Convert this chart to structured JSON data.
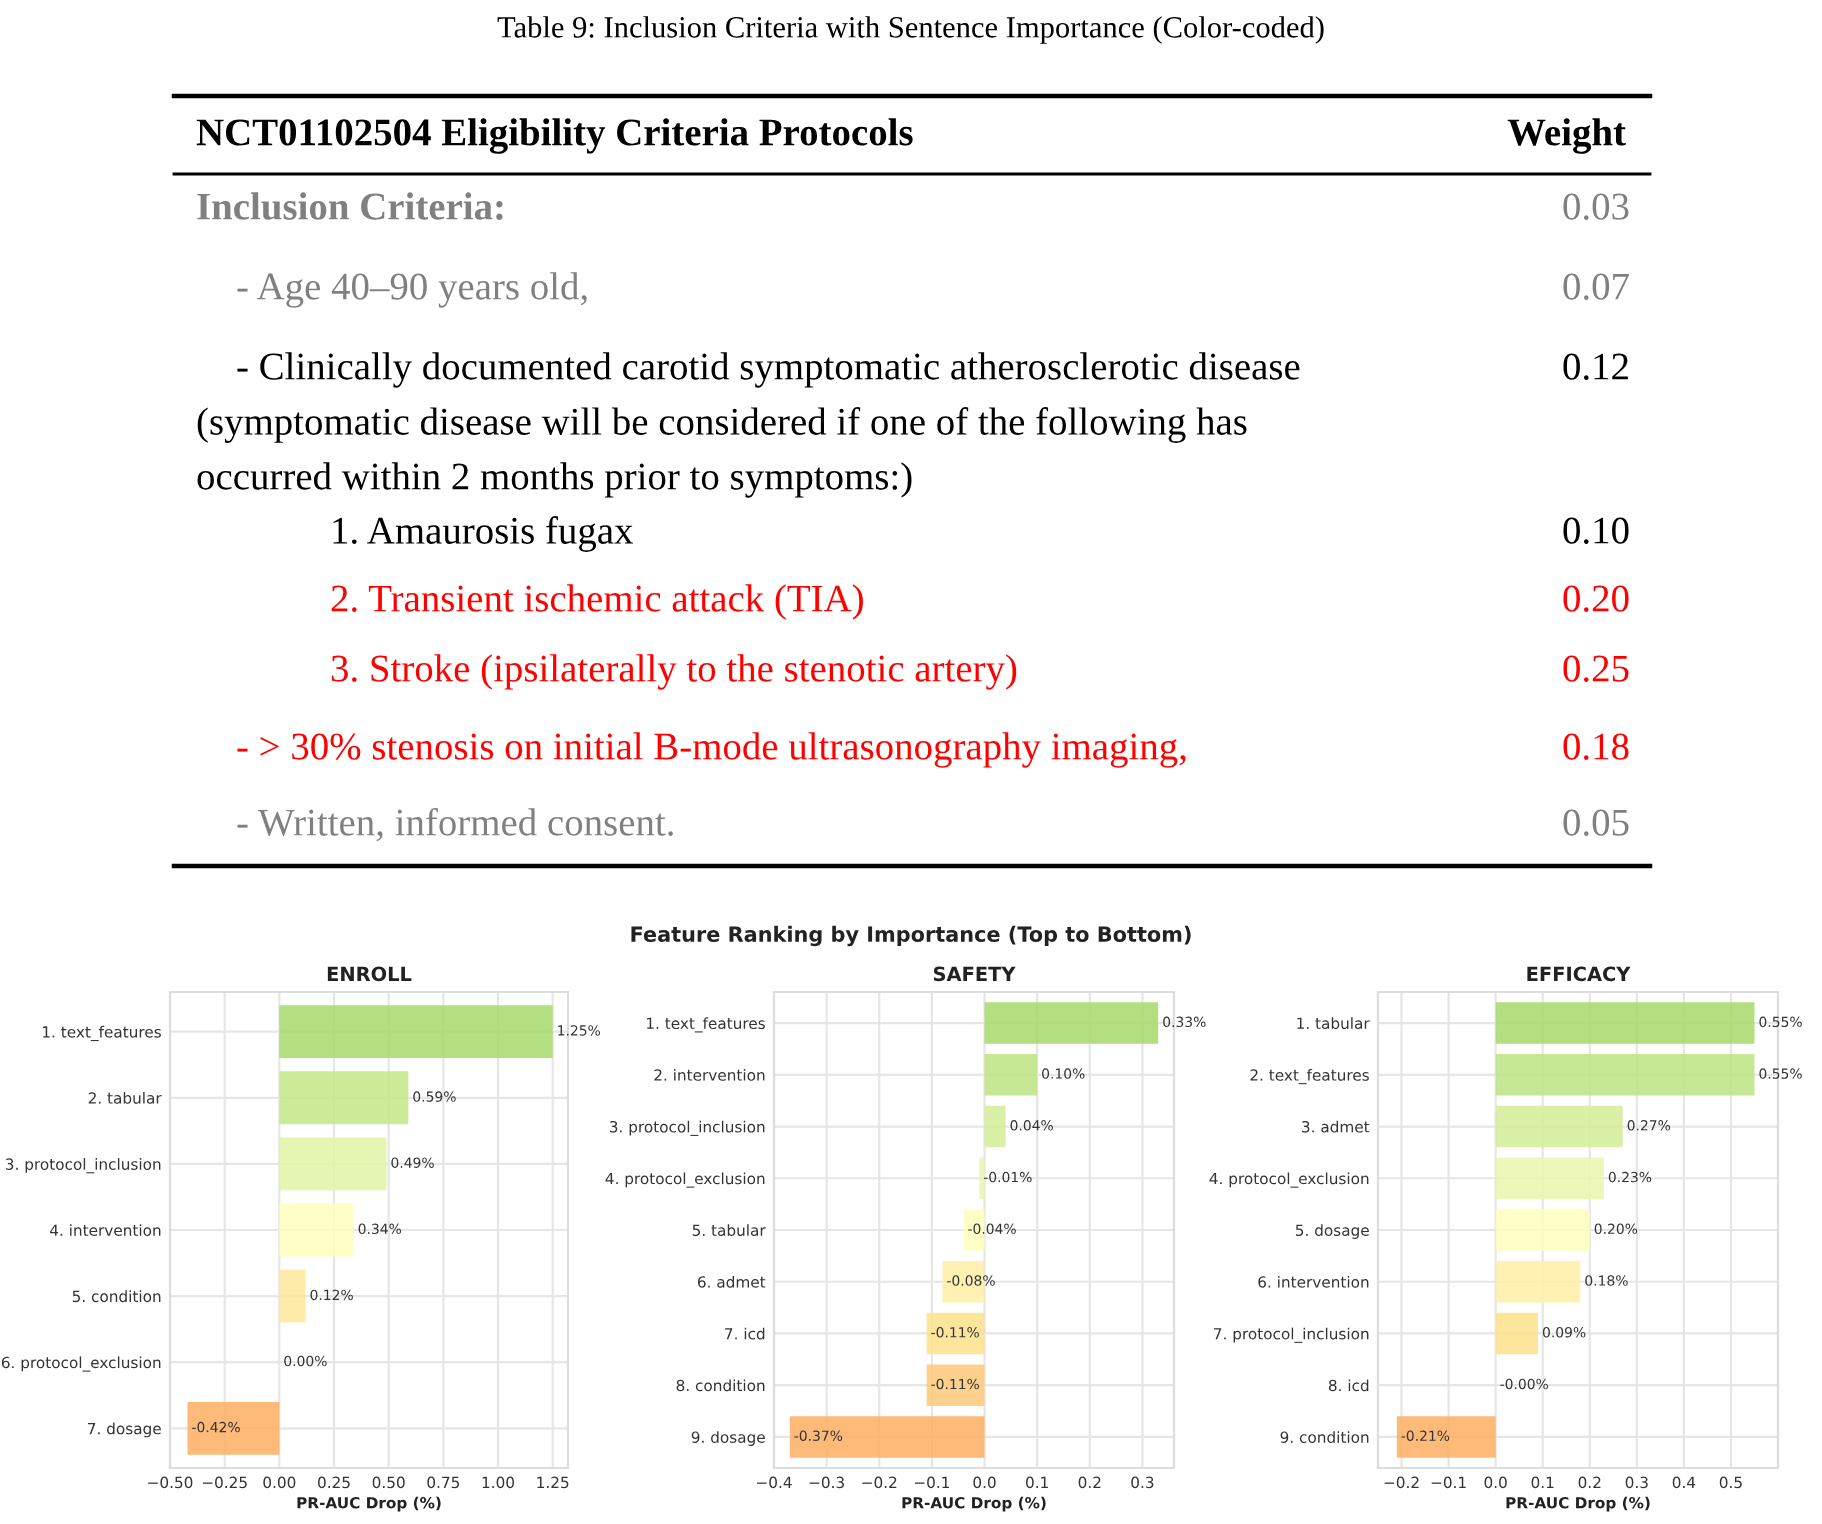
{
  "chart_data": [
    {
      "type": "other",
      "title": "Table 9: Inclusion Criteria with Sentence Importance (Color-coded)",
      "annotations": [
        "NCT01102504 Eligibility Criteria Protocols",
        "Weight",
        "Inclusion Criteria:",
        "0.03",
        "- Age 40–90 years old,",
        "0.07",
        "- Clinically documented carotid symptomatic atherosclerotic disease (symptomatic disease will be considered if one of the following has occurred within 2 months prior to symptoms:)",
        "0.12",
        "1. Amaurosis fugax",
        "0.10",
        "2. Transient ischemic attack (TIA)",
        "0.20",
        "3. Stroke (ipsilaterally to the stenotic artery)",
        "0.25",
        "- > 30% stenosis on initial B-mode ultrasonography imaging,",
        "0.18",
        "- Written, informed consent.",
        "0.05"
      ],
      "colors": [
        "#808080",
        "#808080",
        "#000000",
        "#000000",
        "#ff0000",
        "#ff0000",
        "#ff0000",
        "#808080"
      ]
    },
    {
      "type": "bar",
      "orientation": "horizontal",
      "title": "ENROLL",
      "xlabel": "PR-AUC Drop (%)",
      "annotations": [
        "Feature Ranking by Importance (Top to Bottom)"
      ],
      "categories": [
        "1. text_features",
        "2. tabular",
        "3. protocol_inclusion",
        "4. intervention",
        "5. condition",
        "6. protocol_exclusion",
        "7. dosage"
      ],
      "values": [
        1.25,
        0.59,
        0.49,
        0.34,
        0.12,
        0.0,
        -0.42
      ],
      "value_labels": [
        "1.25%",
        "0.59%",
        "0.49%",
        "0.34%",
        "0.12%",
        "0.00%",
        "-0.42%"
      ],
      "colors": [
        "#a6d96a",
        "#c4e687",
        "#e0f3a5",
        "#fefebd",
        "#fee89a",
        "#fdd080",
        "#fdae61"
      ],
      "xlim": [
        -0.5,
        1.32
      ],
      "xticks": [
        {
          "value": -0.5,
          "label": "−0.50"
        },
        {
          "value": -0.25,
          "label": "−0.25"
        },
        {
          "value": 0,
          "label": "0.00"
        },
        {
          "value": 0.25,
          "label": "0.25"
        },
        {
          "value": 0.5,
          "label": "0.50"
        },
        {
          "value": 0.75,
          "label": "0.75"
        },
        {
          "value": 1.0,
          "label": "1.00"
        },
        {
          "value": 1.25,
          "label": "1.25"
        }
      ],
      "grid": true
    },
    {
      "type": "bar",
      "orientation": "horizontal",
      "title": "SAFETY",
      "xlabel": "PR-AUC Drop (%)",
      "categories": [
        "1. text_features",
        "2. intervention",
        "3. protocol_inclusion",
        "4. protocol_exclusion",
        "5. tabular",
        "6. admet",
        "7. icd",
        "8. condition",
        "9. dosage"
      ],
      "values": [
        0.33,
        0.1,
        0.04,
        -0.01,
        -0.04,
        -0.08,
        -0.11,
        -0.11,
        -0.37
      ],
      "value_labels": [
        "0.33%",
        "0.10%",
        "0.04%",
        "-0.01%",
        "-0.04%",
        "-0.08%",
        "-0.11%",
        "-0.11%",
        "-0.37%"
      ],
      "colors": [
        "#a6d96a",
        "#bce381",
        "#d3ed96",
        "#e9f6ad",
        "#fefebd",
        "#feeea5",
        "#fee08b",
        "#fdc979",
        "#fdae61"
      ],
      "xlim": [
        -0.4,
        0.36
      ],
      "xticks": [
        {
          "value": -0.4,
          "label": "−0.4"
        },
        {
          "value": -0.3,
          "label": "−0.3"
        },
        {
          "value": -0.2,
          "label": "−0.2"
        },
        {
          "value": -0.1,
          "label": "−0.1"
        },
        {
          "value": 0,
          "label": "0.0"
        },
        {
          "value": 0.1,
          "label": "0.1"
        },
        {
          "value": 0.2,
          "label": "0.2"
        },
        {
          "value": 0.3,
          "label": "0.3"
        }
      ],
      "grid": true
    },
    {
      "type": "bar",
      "orientation": "horizontal",
      "title": "EFFICACY",
      "xlabel": "PR-AUC Drop (%)",
      "categories": [
        "1. tabular",
        "2. text_features",
        "3. admet",
        "4. protocol_exclusion",
        "5. dosage",
        "6. intervention",
        "7. protocol_inclusion",
        "8. icd",
        "9. condition"
      ],
      "values": [
        0.55,
        0.55,
        0.27,
        0.23,
        0.2,
        0.18,
        0.09,
        0.0,
        -0.21
      ],
      "value_labels": [
        "0.55%",
        "0.55%",
        "0.27%",
        "0.23%",
        "0.20%",
        "0.18%",
        "0.09%",
        "-0.00%",
        "-0.21%"
      ],
      "colors": [
        "#a6d96a",
        "#bce381",
        "#d3ed96",
        "#e9f6ad",
        "#fefebd",
        "#feeea5",
        "#fee08b",
        "#fdc979",
        "#fdae61"
      ],
      "xlim": [
        -0.25,
        0.6
      ],
      "xticks": [
        {
          "value": -0.2,
          "label": "−0.2"
        },
        {
          "value": -0.1,
          "label": "−0.1"
        },
        {
          "value": 0,
          "label": "0.0"
        },
        {
          "value": 0.1,
          "label": "0.1"
        },
        {
          "value": 0.2,
          "label": "0.2"
        },
        {
          "value": 0.3,
          "label": "0.3"
        },
        {
          "value": 0.4,
          "label": "0.4"
        },
        {
          "value": 0.5,
          "label": "0.5"
        }
      ],
      "grid": true
    }
  ]
}
